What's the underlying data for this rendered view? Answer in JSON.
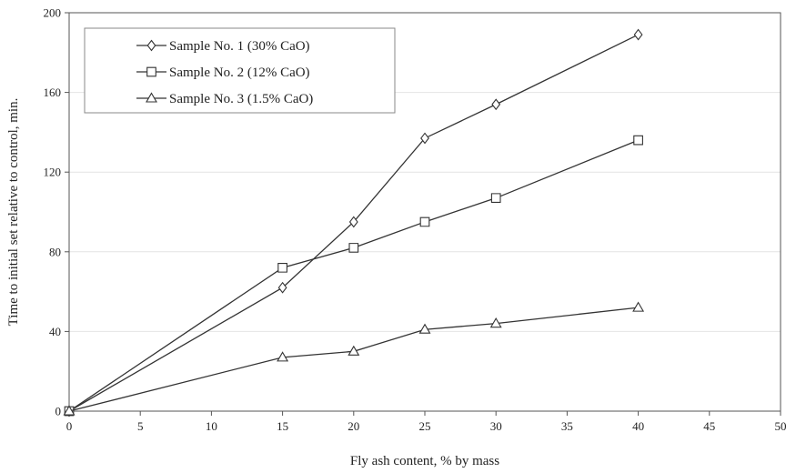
{
  "chart_data": {
    "type": "line",
    "xlabel": "Fly ash content, % by mass",
    "ylabel": "Time to initial set relative to control, min.",
    "xlim": [
      0,
      50
    ],
    "ylim": [
      0,
      200
    ],
    "xticks": [
      "0",
      "5",
      "10",
      "15",
      "20",
      "25",
      "30",
      "35",
      "40",
      "45",
      "50"
    ],
    "yticks": [
      "0",
      "40",
      "80",
      "120",
      "160",
      "200"
    ],
    "grid": "horizontal",
    "legend_position": "top-left",
    "series": [
      {
        "name": "Sample No. 1 (30% CaO)",
        "marker": "diamond",
        "points": [
          [
            0,
            0
          ],
          [
            15,
            62
          ],
          [
            20,
            95
          ],
          [
            25,
            137
          ],
          [
            30,
            154
          ],
          [
            40,
            189
          ]
        ]
      },
      {
        "name": "Sample No. 2 (12% CaO)",
        "marker": "square",
        "points": [
          [
            0,
            0
          ],
          [
            15,
            72
          ],
          [
            20,
            82
          ],
          [
            25,
            95
          ],
          [
            30,
            107
          ],
          [
            40,
            136
          ]
        ]
      },
      {
        "name": "Sample No. 3 (1.5% CaO)",
        "marker": "triangle",
        "points": [
          [
            0,
            0
          ],
          [
            15,
            27
          ],
          [
            20,
            30
          ],
          [
            25,
            41
          ],
          [
            30,
            44
          ],
          [
            40,
            52
          ]
        ]
      }
    ]
  }
}
